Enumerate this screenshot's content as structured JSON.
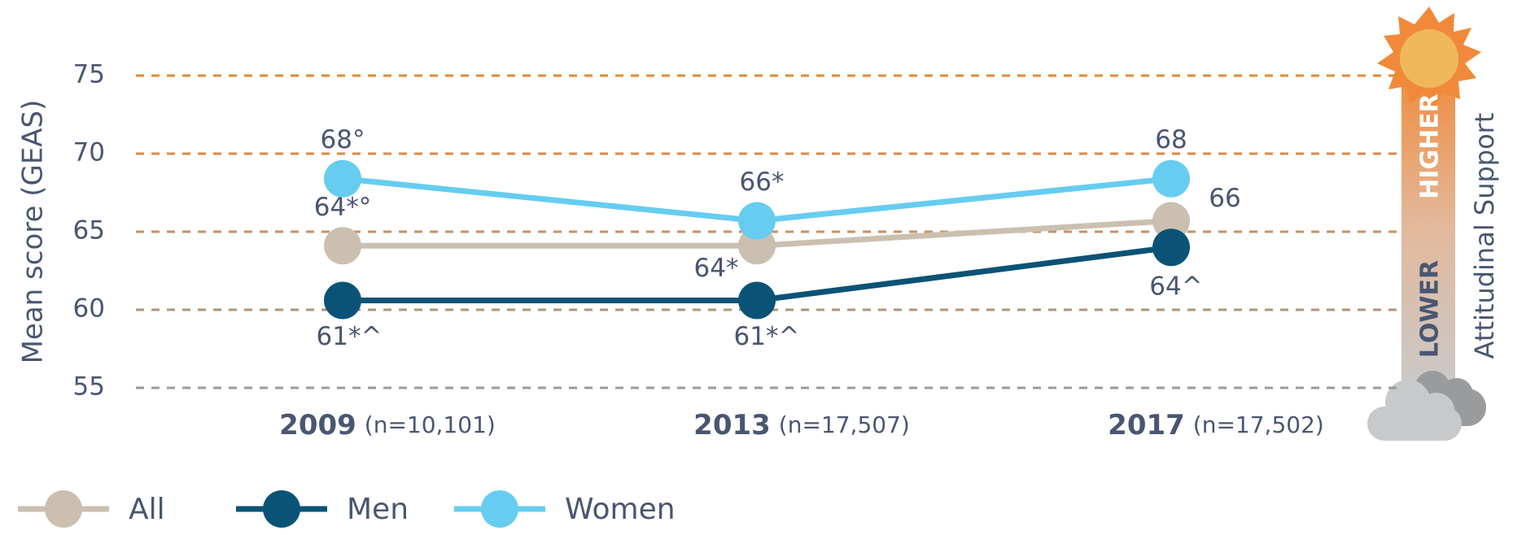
{
  "chart_data": {
    "type": "line",
    "y_label": "Mean score (GEAS)",
    "categories": [
      "2009",
      "2013",
      "2017"
    ],
    "sample_sizes": [
      "(n=10,101)",
      "(n=17,507)",
      "(n=17,502)"
    ],
    "series": [
      {
        "name": "All",
        "color": "#cbbfb0",
        "values": [
          64.1,
          64.1,
          65.7
        ],
        "value_labels": [
          "64*°",
          "64*",
          "66"
        ]
      },
      {
        "name": "Men",
        "color": "#0b5376",
        "values": [
          60.6,
          60.6,
          64.0
        ],
        "value_labels": [
          "61*^",
          "61*^",
          "64^"
        ]
      },
      {
        "name": "Women",
        "color": "#66cdf0",
        "values": [
          68.4,
          65.7,
          68.4
        ],
        "value_labels": [
          "68°",
          "66*",
          "68"
        ]
      }
    ],
    "ylim": [
      55,
      75
    ],
    "yticks": [
      55,
      60,
      65,
      70,
      75
    ],
    "grid": true,
    "grid_colors": [
      "#9a9a9a",
      "#b09478",
      "#c99060",
      "#d88a48",
      "#e08a3c"
    ],
    "scale_labels": {
      "high": "HIGHER",
      "low": "LOWER",
      "axis": "Attitudinal Support"
    }
  }
}
